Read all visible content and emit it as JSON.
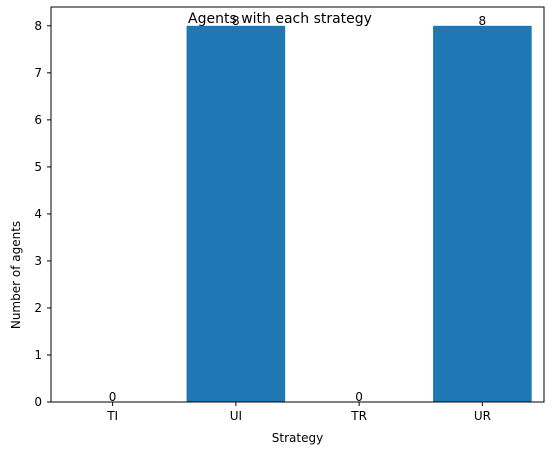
{
  "chart_data": {
    "type": "bar",
    "title": "Agents with each strategy",
    "xlabel": "Strategy",
    "ylabel": "Number of agents",
    "categories": [
      "TI",
      "UI",
      "TR",
      "UR"
    ],
    "values": [
      0,
      8,
      0,
      8
    ],
    "data_labels": [
      "0",
      "8",
      "0",
      "8"
    ],
    "ylim": [
      0,
      8.4
    ],
    "yticks": [
      0,
      1,
      2,
      3,
      4,
      5,
      6,
      7,
      8
    ],
    "bar_color": "#1f77b4",
    "grid": false,
    "legend": "none"
  }
}
